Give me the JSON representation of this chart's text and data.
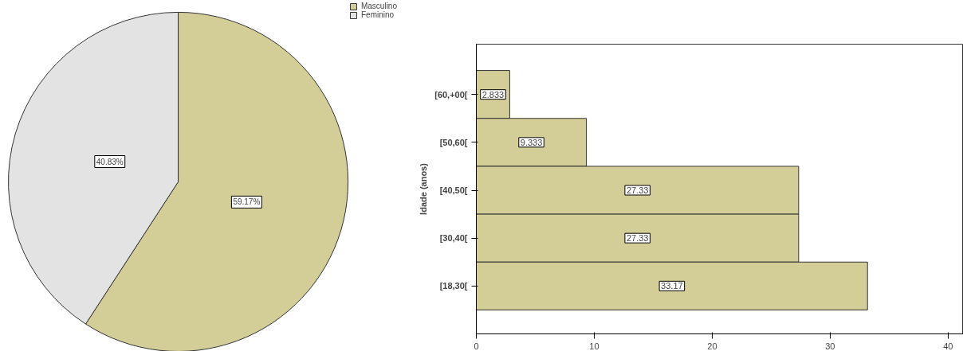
{
  "chart_data": [
    {
      "type": "pie",
      "categories": [
        "Masculino",
        "Feminino"
      ],
      "values": [
        59.17,
        40.83
      ],
      "colors": [
        "#d3cd98",
        "#e3e3e3"
      ],
      "value_labels": [
        "59.17%",
        "40.83%"
      ],
      "legend": "top right"
    },
    {
      "type": "bar",
      "orientation": "horizontal",
      "ylabel": "Idade (anos)",
      "categories": [
        "[60,+00[",
        "[50,60[",
        "[40,50[",
        "[30,40[",
        "[18,30["
      ],
      "values": [
        2.833,
        9.333,
        27.33,
        27.33,
        33.17
      ],
      "color": "#d3cd98",
      "xlim": [
        0,
        41.3
      ],
      "xticks": [
        0,
        10,
        20,
        30,
        40
      ],
      "data_labels": true
    }
  ]
}
